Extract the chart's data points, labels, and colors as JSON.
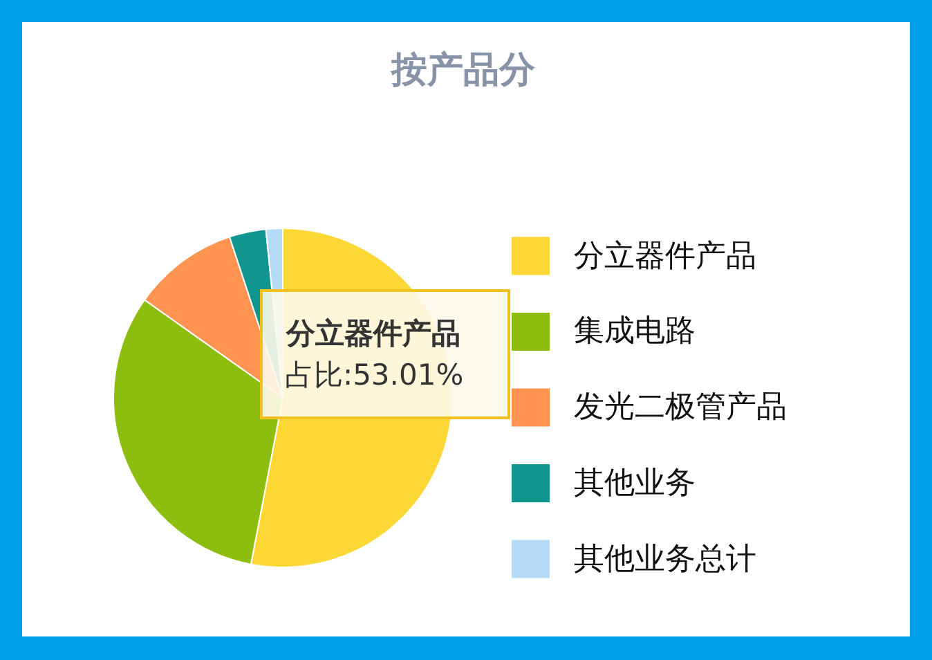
{
  "chart_data": {
    "type": "pie",
    "title": "按产品分",
    "categories": [
      "分立器件产品",
      "集成电路",
      "发光二极管产品",
      "其他业务",
      "其他业务总计"
    ],
    "values": [
      53.01,
      31.8,
      10.1,
      3.5,
      1.59
    ],
    "colors": [
      "#fdd835",
      "#8dbd0e",
      "#ff9452",
      "#11968f",
      "#b5dbf7"
    ],
    "legend": "right",
    "annotations": [
      "分立器件产品",
      "占比:53.01%"
    ]
  }
}
